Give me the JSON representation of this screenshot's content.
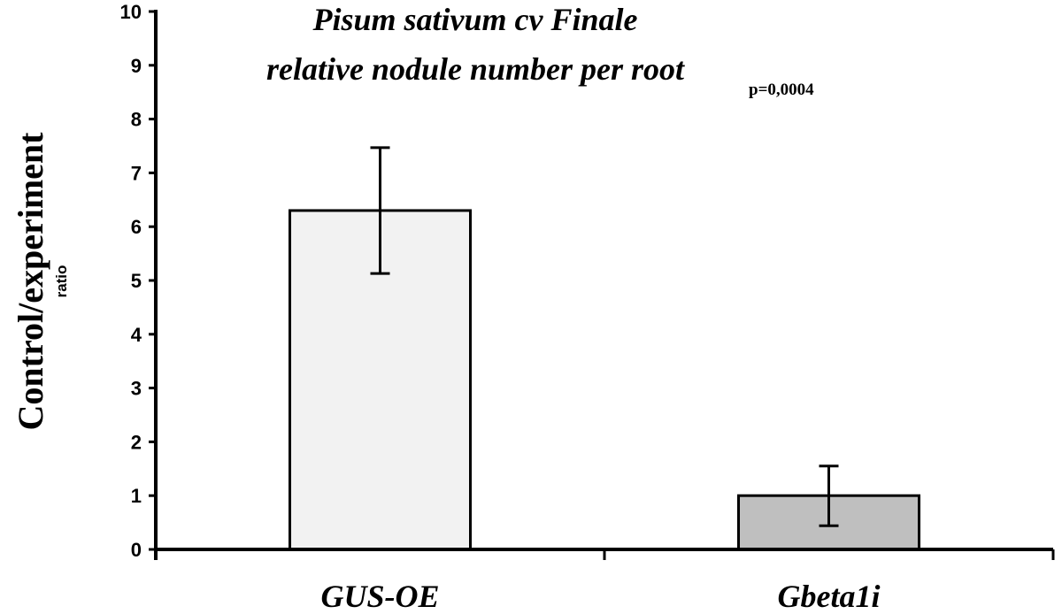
{
  "chart_data": {
    "type": "bar",
    "title_lines": [
      "Pisum sativum cv Finale",
      "relative nodule number per root"
    ],
    "annotation": "p=0,0004",
    "ylabel": "Control/experiment",
    "ylabel_sub": "ratio",
    "ylim": [
      0,
      10
    ],
    "yticks": [
      "0",
      "1",
      "2",
      "3",
      "4",
      "5",
      "6",
      "7",
      "8",
      "9",
      "10"
    ],
    "categories": [
      "GUS-OE",
      "Gbeta1i"
    ],
    "values": [
      6.3,
      1.0
    ],
    "error_low": [
      5.13,
      0.44
    ],
    "error_high": [
      7.47,
      1.55
    ],
    "bar_colors": [
      "#f2f2f2",
      "#bfbfbf"
    ],
    "grid": false,
    "legend": "none"
  }
}
